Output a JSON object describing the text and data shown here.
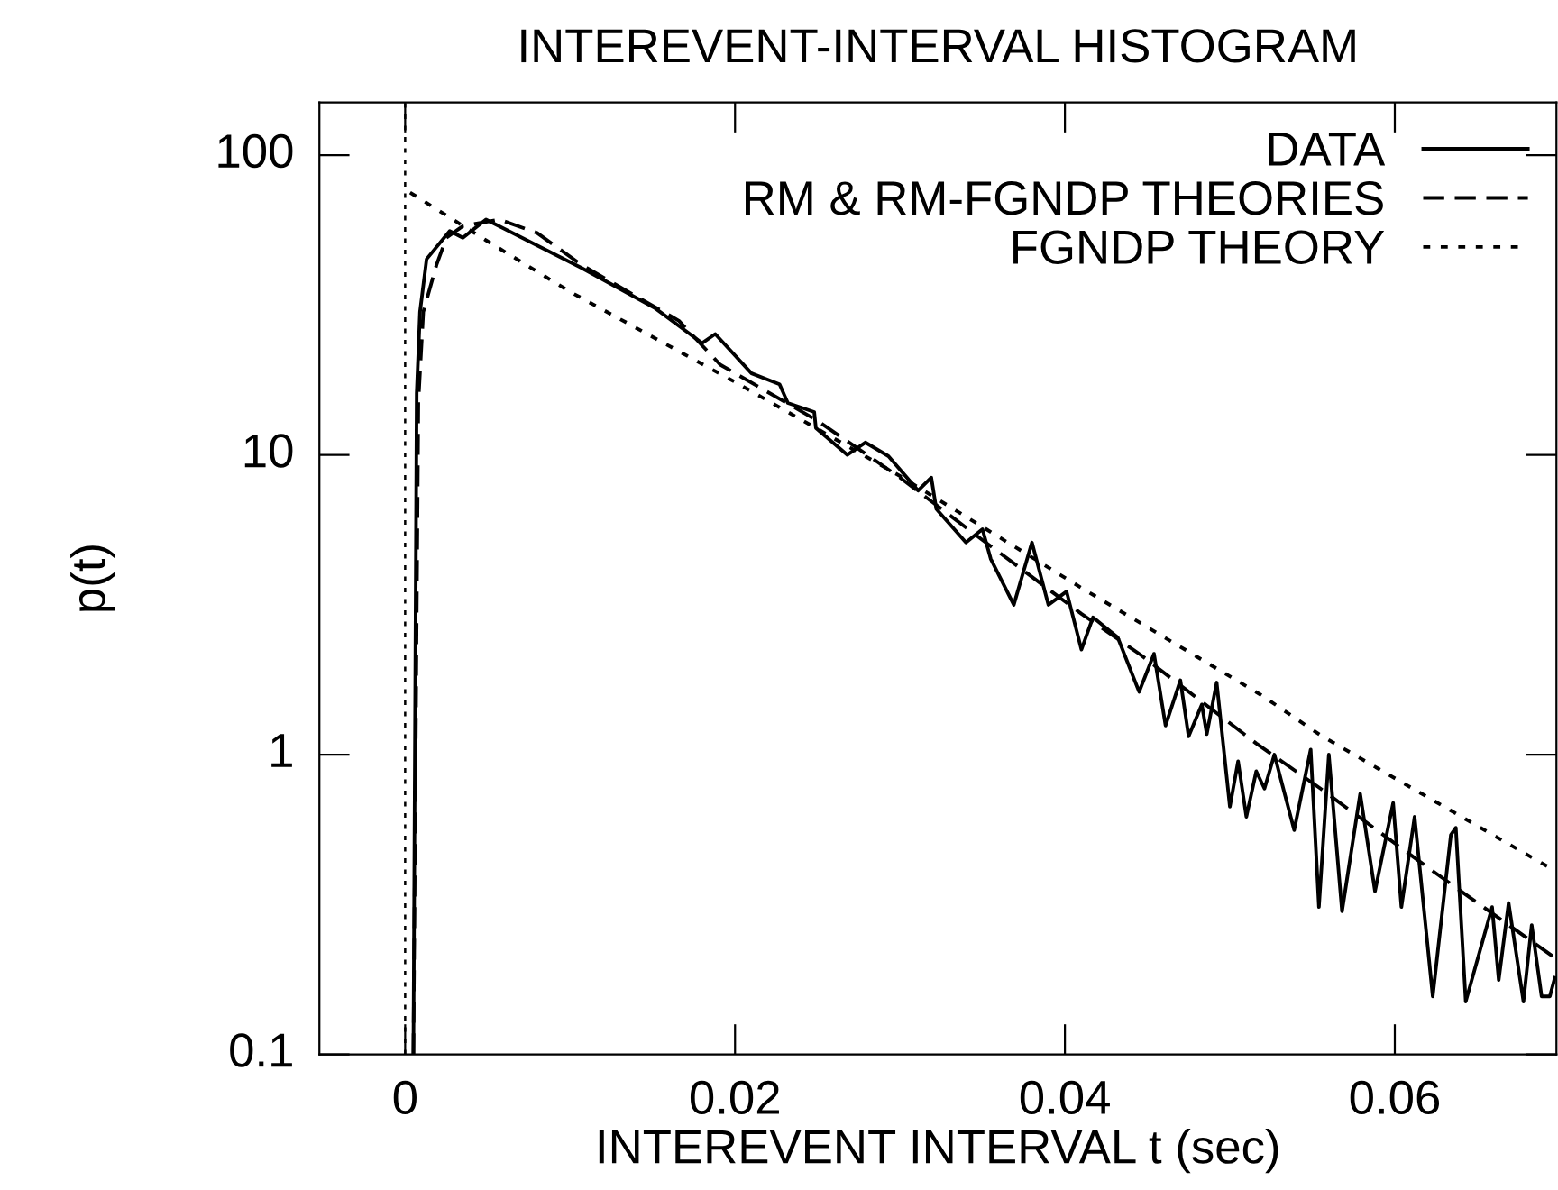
{
  "chart_data": {
    "type": "line",
    "title": "INTEREVENT-INTERVAL HISTOGRAM",
    "xlabel": "INTEREVENT INTERVAL t (sec)",
    "ylabel": "p(t)",
    "log": "y",
    "xlim": [
      -0.0052,
      0.0698
    ],
    "ylim": [
      0.1,
      150
    ],
    "xticks": [
      0,
      0.02,
      0.04,
      0.06
    ],
    "yticks": [
      0.1,
      1,
      10,
      100
    ],
    "legend": "top right",
    "grid": false,
    "ref_lines": [
      {
        "axis": "x",
        "value": 0,
        "line_style": "dotted",
        "color": "#000000"
      }
    ],
    "series": [
      {
        "name": "DATA",
        "color": "#000000",
        "line_style": "solid",
        "x": [
          0.0005,
          0.0007,
          0.0009,
          0.0013,
          0.0027,
          0.0035,
          0.0049,
          0.0107,
          0.0151,
          0.018,
          0.0188,
          0.021,
          0.0227,
          0.0232,
          0.0248,
          0.0249,
          0.0268,
          0.0279,
          0.0293,
          0.0311,
          0.0319,
          0.0322,
          0.034,
          0.035,
          0.0355,
          0.0369,
          0.038,
          0.039,
          0.0401,
          0.041,
          0.0417,
          0.0432,
          0.0445,
          0.0454,
          0.0461,
          0.047,
          0.0475,
          0.0483,
          0.0486,
          0.0492,
          0.05,
          0.0505,
          0.051,
          0.0516,
          0.0521,
          0.0527,
          0.0539,
          0.0549,
          0.0554,
          0.056,
          0.0568,
          0.0579,
          0.0588,
          0.0599,
          0.0604,
          0.0612,
          0.0623,
          0.0634,
          0.0637,
          0.0643,
          0.0659,
          0.0663,
          0.0669,
          0.0678,
          0.0683,
          0.0689,
          0.0694,
          0.0697
        ],
        "values": [
          0.1,
          16,
          30,
          45,
          55.8,
          53,
          61,
          42,
          31,
          23.6,
          25.3,
          18.7,
          17.2,
          14.9,
          13.9,
          12.3,
          10,
          11,
          9.9,
          7.6,
          8.4,
          6.6,
          5.1,
          5.65,
          4.5,
          3.16,
          5.1,
          3.16,
          3.5,
          2.24,
          2.87,
          2.46,
          1.62,
          2.17,
          1.25,
          1.77,
          1.15,
          1.47,
          1.17,
          1.74,
          0.67,
          0.95,
          0.62,
          0.88,
          0.77,
          1.0,
          0.56,
          1.04,
          0.31,
          1.0,
          0.3,
          0.74,
          0.35,
          0.69,
          0.31,
          0.62,
          0.156,
          0.54,
          0.57,
          0.15,
          0.31,
          0.177,
          0.32,
          0.15,
          0.27,
          0.156,
          0.156,
          0.18
        ]
      },
      {
        "name": "RM & RM-FGNDP THEORIES",
        "color": "#000000",
        "line_style": "dashed",
        "x": [
          0.0005,
          0.0008,
          0.0011,
          0.0019,
          0.0025,
          0.0035,
          0.0057,
          0.008,
          0.0107,
          0.0166,
          0.0191,
          0.025,
          0.03,
          0.035,
          0.041,
          0.0446,
          0.0516,
          0.0555,
          0.062,
          0.0697
        ],
        "values": [
          0.1,
          15,
          30,
          43,
          53,
          58,
          61,
          55,
          43,
          28,
          20,
          13,
          8.4,
          5.2,
          2.95,
          2.15,
          1.09,
          0.77,
          0.42,
          0.21
        ]
      },
      {
        "name": "FGNDP THEORY",
        "color": "#000000",
        "line_style": "dotted",
        "x": [
          0.0003,
          0.0049,
          0.01,
          0.02,
          0.03,
          0.041,
          0.0519,
          0.0555,
          0.0697
        ],
        "values": [
          75,
          52,
          35,
          17.5,
          8.5,
          3.6,
          1.58,
          1.16,
          0.41
        ]
      }
    ]
  }
}
